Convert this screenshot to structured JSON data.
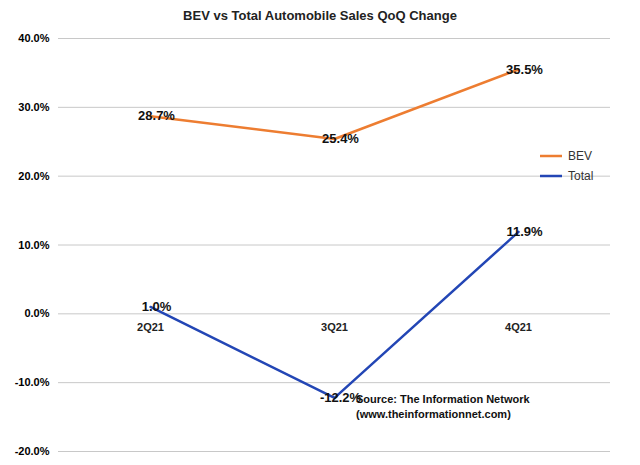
{
  "chart_data": {
    "type": "line",
    "title": "BEV vs Total Automobile Sales QoQ Change",
    "categories": [
      "2Q21",
      "3Q21",
      "4Q21"
    ],
    "series": [
      {
        "name": "BEV",
        "color": "#ED7D31",
        "values": [
          28.7,
          25.4,
          35.5
        ],
        "value_labels": [
          "28.7%",
          "25.4%",
          "35.5%"
        ]
      },
      {
        "name": "Total",
        "color": "#2346B5",
        "values": [
          1.0,
          -12.2,
          11.9
        ],
        "value_labels": [
          "1.0%",
          "-12.2%",
          "11.9%"
        ]
      }
    ],
    "ylim": [
      -20,
      40
    ],
    "yticks": [
      {
        "value": -20,
        "label": "-20.0%"
      },
      {
        "value": -10,
        "label": "-10.0%"
      },
      {
        "value": 0,
        "label": "0.0%"
      },
      {
        "value": 10,
        "label": "10.0%"
      },
      {
        "value": 20,
        "label": "20.0%"
      },
      {
        "value": 30,
        "label": "30.0%"
      },
      {
        "value": 40,
        "label": "40.0%"
      }
    ],
    "grid": true,
    "legend": "right",
    "data_labels": true,
    "annotations": [
      "Source: The Information Network",
      "(www.theinformationnet.com)"
    ]
  }
}
